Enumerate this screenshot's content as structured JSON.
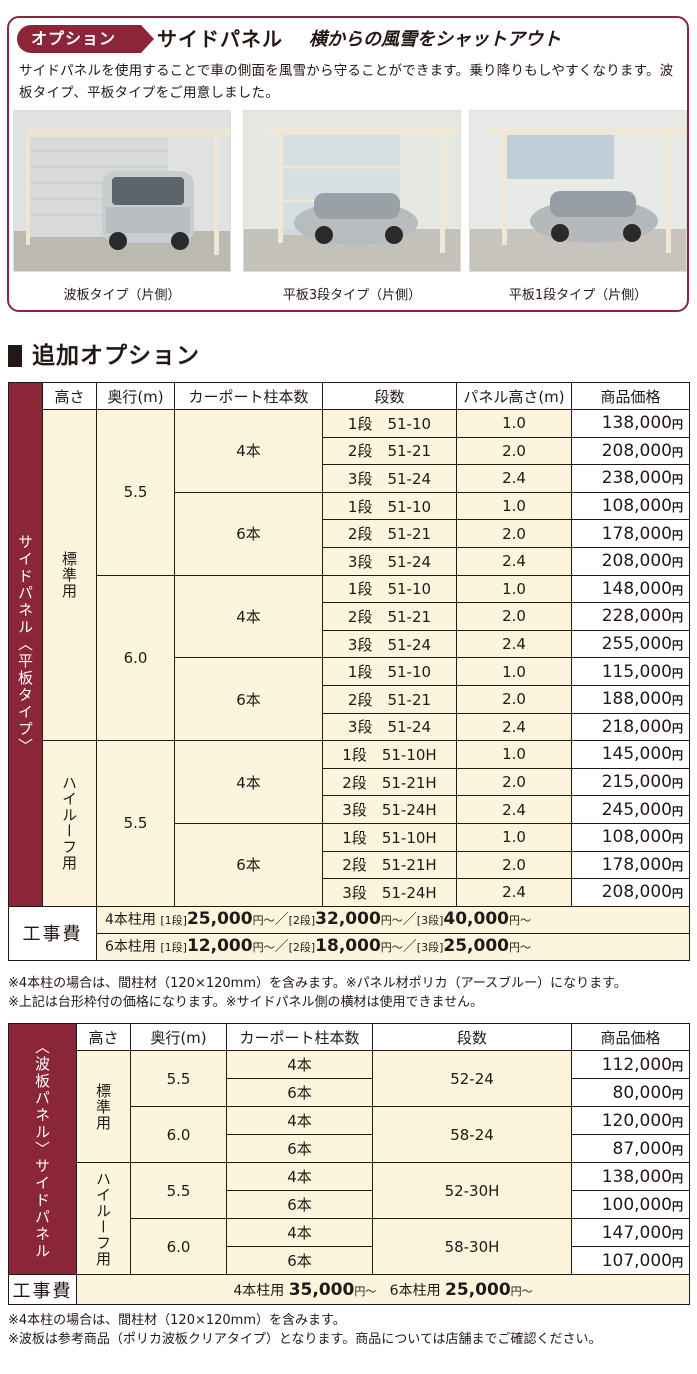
{
  "option": {
    "tag": "オプション",
    "title": "サイドパネル",
    "subtitle": "横からの風雪をシャットアウト",
    "description": "サイドパネルを使用することで車の側面を風雪から守ることができます。乗り降りもしやすくなります。波板タイプ、平板タイプをご用意しました。",
    "photos": [
      {
        "caption": "波板タイプ（片側）"
      },
      {
        "caption": "平板3段タイプ（片側）"
      },
      {
        "caption": "平板1段タイプ（片側）"
      }
    ]
  },
  "section": {
    "title": "追加オプション"
  },
  "flat_table": {
    "side_label": "サイドパネル〈平板タイプ〉",
    "headers": {
      "height": "高さ",
      "depth": "奥行(m)",
      "posts": "カーポート柱本数",
      "steps": "段数",
      "panel_height": "パネル高さ(m)",
      "price": "商品価格"
    },
    "heights": {
      "standard": "標準用",
      "high": "ハイルーフ用"
    },
    "depths": {
      "d55": "5.5",
      "d60": "6.0"
    },
    "posts": {
      "p4": "4本",
      "p6": "6本"
    },
    "rows": [
      {
        "step": "1段　51-10",
        "panel": "1.0",
        "price": "138,000"
      },
      {
        "step": "2段　51-21",
        "panel": "2.0",
        "price": "208,000"
      },
      {
        "step": "3段　51-24",
        "panel": "2.4",
        "price": "238,000"
      },
      {
        "step": "1段　51-10",
        "panel": "1.0",
        "price": "108,000"
      },
      {
        "step": "2段　51-21",
        "panel": "2.0",
        "price": "178,000"
      },
      {
        "step": "3段　51-24",
        "panel": "2.4",
        "price": "208,000"
      },
      {
        "step": "1段　51-10",
        "panel": "1.0",
        "price": "148,000"
      },
      {
        "step": "2段　51-21",
        "panel": "2.0",
        "price": "228,000"
      },
      {
        "step": "3段　51-24",
        "panel": "2.4",
        "price": "255,000"
      },
      {
        "step": "1段　51-10",
        "panel": "1.0",
        "price": "115,000"
      },
      {
        "step": "2段　51-21",
        "panel": "2.0",
        "price": "188,000"
      },
      {
        "step": "3段　51-24",
        "panel": "2.4",
        "price": "218,000"
      },
      {
        "step": "1段　51-10H",
        "panel": "1.0",
        "price": "145,000"
      },
      {
        "step": "2段　51-21H",
        "panel": "2.0",
        "price": "215,000"
      },
      {
        "step": "3段　51-24H",
        "panel": "2.4",
        "price": "245,000"
      },
      {
        "step": "1段　51-10H",
        "panel": "1.0",
        "price": "108,000"
      },
      {
        "step": "2段　51-21H",
        "panel": "2.0",
        "price": "178,000"
      },
      {
        "step": "3段　51-24H",
        "panel": "2.4",
        "price": "208,000"
      }
    ],
    "yen": "円",
    "cost_label": "工事費",
    "cost_4": {
      "prefix": "4本柱用",
      "s1": "[1段]",
      "v1": "25,000",
      "s2": "[2段]",
      "v2": "32,000",
      "s3": "[3段]",
      "v3": "40,000"
    },
    "cost_6": {
      "prefix": "6本柱用",
      "s1": "[1段]",
      "v1": "12,000",
      "s2": "[2段]",
      "v2": "18,000",
      "s3": "[3段]",
      "v3": "25,000"
    },
    "cost_unit": "円～",
    "cost_sep": "／",
    "notes": [
      "※4本柱の場合は、間柱材（120×120mm）を含みます。※パネル材ポリカ（アースブルー）になります。",
      "※上記は台形枠付の価格になります。※サイドパネル側の横材は使用できません。"
    ]
  },
  "wave_table": {
    "side_label": "〈波板パネル〉サイドパネル",
    "headers": {
      "height": "高さ",
      "depth": "奥行(m)",
      "posts": "カーポート柱本数",
      "steps": "段数",
      "price": "商品価格"
    },
    "heights": {
      "standard": "標準用",
      "high": "ハイルーフ用"
    },
    "rows": [
      {
        "depth": "5.5",
        "steps": "52-24",
        "p4": "4本",
        "price4": "112,000",
        "p6": "6本",
        "price6": "80,000"
      },
      {
        "depth": "6.0",
        "steps": "58-24",
        "p4": "4本",
        "price4": "120,000",
        "p6": "6本",
        "price6": "87,000"
      },
      {
        "depth": "5.5",
        "steps": "52-30H",
        "p4": "4本",
        "price4": "138,000",
        "p6": "6本",
        "price6": "100,000"
      },
      {
        "depth": "6.0",
        "steps": "58-30H",
        "p4": "4本",
        "price4": "147,000",
        "p6": "6本",
        "price6": "107,000"
      }
    ],
    "yen": "円",
    "cost_label": "工事費",
    "cost": {
      "p4": "4本柱用",
      "v4": "35,000",
      "p6": "6本柱用",
      "v6": "25,000",
      "unit": "円～"
    },
    "notes": [
      "※4本柱の場合は、間柱材（120×120mm）を含みます。",
      "※波板は参考商品（ポリカ波板クリアタイプ）となります。商品については店舗までご確認ください。"
    ]
  }
}
